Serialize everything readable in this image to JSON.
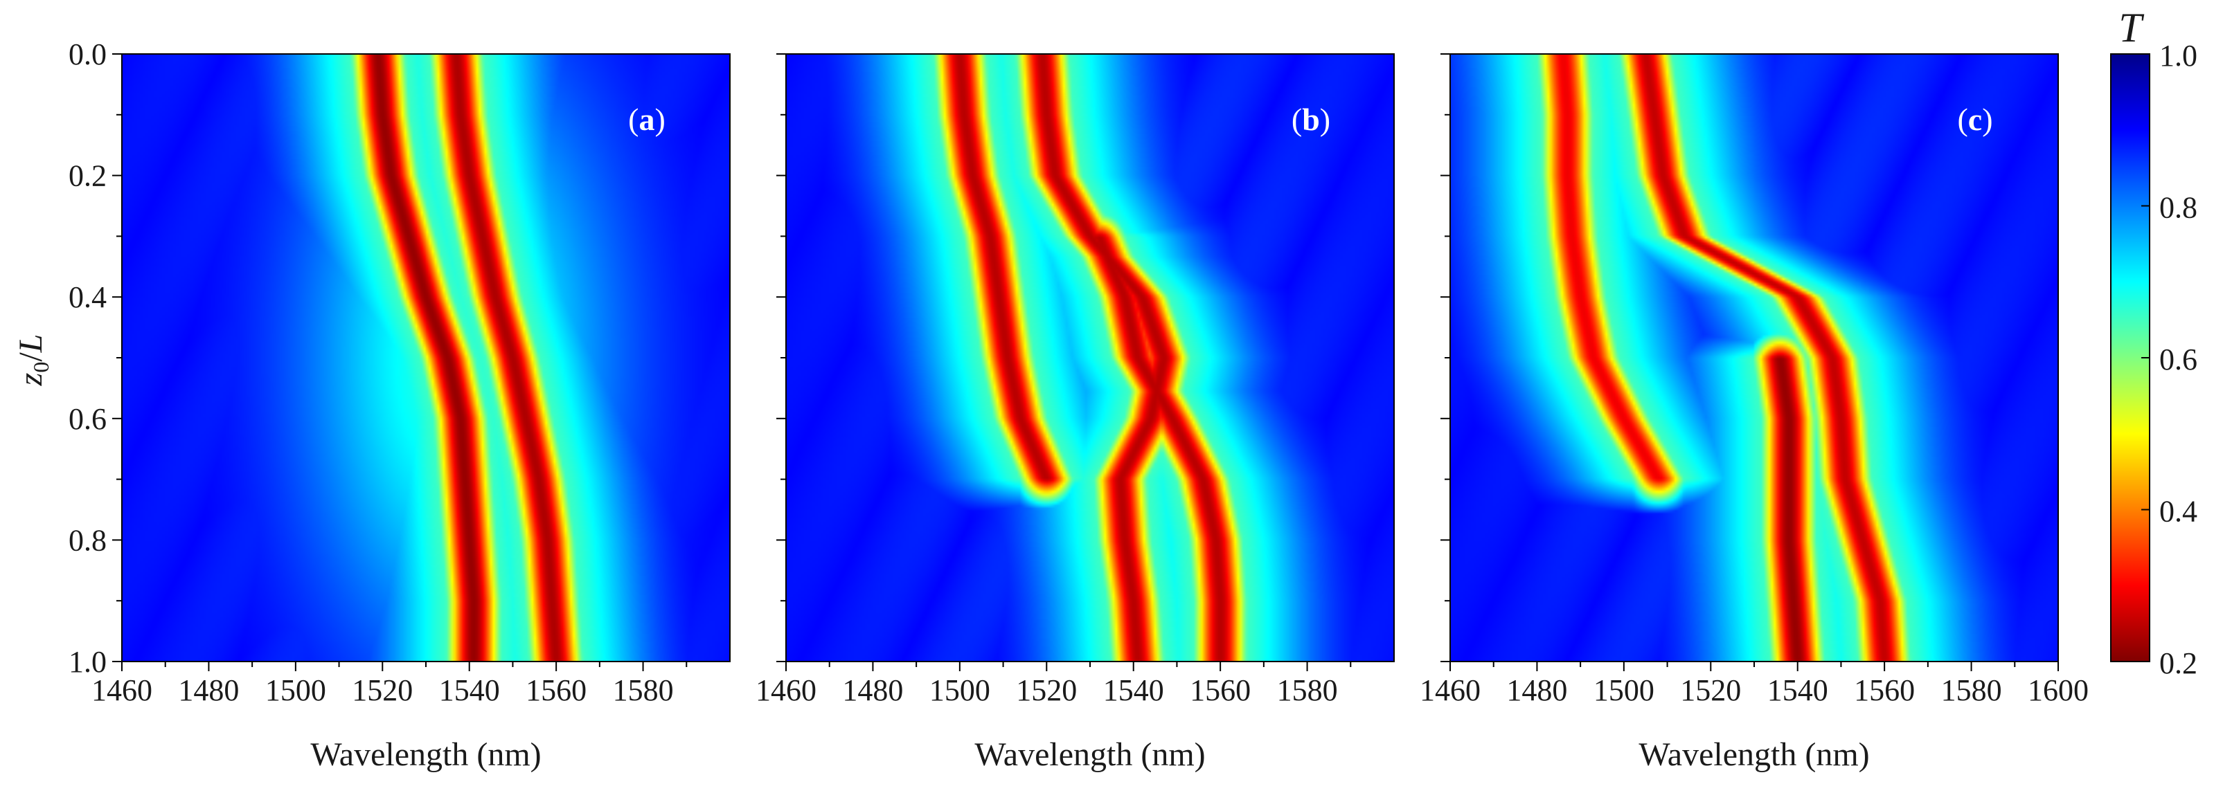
{
  "chart_data": [
    {
      "type": "heatmap",
      "panel": "(a)",
      "xlabel": "Wavelength (nm)",
      "ylabel": "z0/L",
      "xlim": [
        1460,
        1600
      ],
      "ylim": [
        1.0,
        0.0
      ],
      "xticks": [
        "1460",
        "1480",
        "1500",
        "1520",
        "1540",
        "1560",
        "1580"
      ],
      "yticks": [
        "0.0",
        "0.2",
        "0.4",
        "0.6",
        "0.8",
        "1.0"
      ],
      "features": [
        {
          "kind": "dip",
          "trace": [
            [
              0.0,
              1519
            ],
            [
              0.1,
              1520
            ],
            [
              0.2,
              1522
            ],
            [
              0.3,
              1526
            ],
            [
              0.4,
              1530
            ],
            [
              0.5,
              1535
            ],
            [
              0.6,
              1538
            ],
            [
              0.7,
              1539
            ],
            [
              0.8,
              1540
            ],
            [
              0.9,
              1541
            ],
            [
              1.0,
              1541
            ]
          ],
          "min_T": 0.22,
          "width_nm": 4.5
        },
        {
          "kind": "dip",
          "trace": [
            [
              0.0,
              1537
            ],
            [
              0.1,
              1538
            ],
            [
              0.2,
              1540
            ],
            [
              0.3,
              1543
            ],
            [
              0.4,
              1546
            ],
            [
              0.5,
              1550
            ],
            [
              0.6,
              1553
            ],
            [
              0.7,
              1556
            ],
            [
              0.8,
              1558
            ],
            [
              0.9,
              1559
            ],
            [
              1.0,
              1560
            ]
          ],
          "min_T": 0.24,
          "width_nm": 4.5
        },
        {
          "kind": "band",
          "x_center": 1538,
          "y_center": 0.5,
          "width_nm": 26,
          "height": 0.36,
          "min_T": 0.72
        }
      ]
    },
    {
      "type": "heatmap",
      "panel": "(b)",
      "xlabel": "Wavelength (nm)",
      "ylabel": "",
      "xlim": [
        1460,
        1600
      ],
      "ylim": [
        1.0,
        0.0
      ],
      "xticks": [
        "1460",
        "1480",
        "1500",
        "1520",
        "1540",
        "1560",
        "1580"
      ],
      "yticks": [],
      "features": [
        {
          "kind": "dip",
          "trace": [
            [
              0.0,
              1500
            ],
            [
              0.1,
              1501
            ],
            [
              0.2,
              1503
            ],
            [
              0.3,
              1507
            ],
            [
              0.4,
              1509
            ],
            [
              0.5,
              1511
            ],
            [
              0.6,
              1514
            ],
            [
              0.7,
              1520
            ]
          ],
          "min_T": 0.25,
          "width_nm": 4.5
        },
        {
          "kind": "dip",
          "trace": [
            [
              0.0,
              1519
            ],
            [
              0.1,
              1520
            ],
            [
              0.2,
              1522
            ],
            [
              0.3,
              1530
            ],
            [
              0.4,
              1542
            ],
            [
              0.5,
              1547
            ],
            [
              0.6,
              1544
            ],
            [
              0.7,
              1537
            ],
            [
              0.8,
              1538
            ],
            [
              0.9,
              1540
            ],
            [
              1.0,
              1541
            ]
          ],
          "min_T": 0.25,
          "width_nm": 4.5
        },
        {
          "kind": "dip",
          "trace": [
            [
              0.3,
              1532
            ],
            [
              0.4,
              1538
            ],
            [
              0.5,
              1541
            ],
            [
              0.6,
              1549
            ],
            [
              0.7,
              1556
            ],
            [
              0.8,
              1559
            ],
            [
              0.9,
              1560
            ],
            [
              1.0,
              1560
            ]
          ],
          "min_T": 0.25,
          "width_nm": 4.5
        }
      ]
    },
    {
      "type": "heatmap",
      "panel": "(c)",
      "xlabel": "Wavelength (nm)",
      "ylabel": "",
      "xlim": [
        1460,
        1600
      ],
      "ylim": [
        1.0,
        0.0
      ],
      "xticks": [
        "1460",
        "1480",
        "1500",
        "1520",
        "1540",
        "1560",
        "1580",
        "1600"
      ],
      "yticks": [],
      "features": [
        {
          "kind": "dip",
          "trace": [
            [
              0.0,
              1486
            ],
            [
              0.1,
              1487
            ],
            [
              0.2,
              1487
            ],
            [
              0.3,
              1488
            ],
            [
              0.4,
              1490
            ],
            [
              0.5,
              1493
            ],
            [
              0.6,
              1500
            ],
            [
              0.7,
              1508
            ]
          ],
          "min_T": 0.3,
          "width_nm": 4.5
        },
        {
          "kind": "dip",
          "trace": [
            [
              0.0,
              1505
            ],
            [
              0.1,
              1507
            ],
            [
              0.2,
              1509
            ],
            [
              0.3,
              1514
            ],
            [
              0.4,
              1540
            ],
            [
              0.5,
              1548
            ],
            [
              0.6,
              1550
            ],
            [
              0.7,
              1551
            ],
            [
              0.8,
              1555
            ],
            [
              0.9,
              1559
            ],
            [
              1.0,
              1560
            ]
          ],
          "min_T": 0.26,
          "width_nm": 4.5
        },
        {
          "kind": "dip",
          "trace": [
            [
              0.5,
              1536
            ],
            [
              0.6,
              1538
            ],
            [
              0.7,
              1538
            ],
            [
              0.8,
              1538
            ],
            [
              0.9,
              1539
            ],
            [
              1.0,
              1540
            ]
          ],
          "min_T": 0.22,
          "width_nm": 4.5
        }
      ]
    }
  ],
  "colorbar": {
    "title": "T",
    "range": [
      0.2,
      1.0
    ],
    "ticks": [
      "1.0",
      "0.8",
      "0.6",
      "0.4",
      "0.2"
    ],
    "colormap": "jet",
    "colors": [
      "#800000",
      "#ff0000",
      "#ff8000",
      "#ffff00",
      "#80ff80",
      "#00ffff",
      "#0080ff",
      "#0000ff",
      "#00008b"
    ]
  }
}
